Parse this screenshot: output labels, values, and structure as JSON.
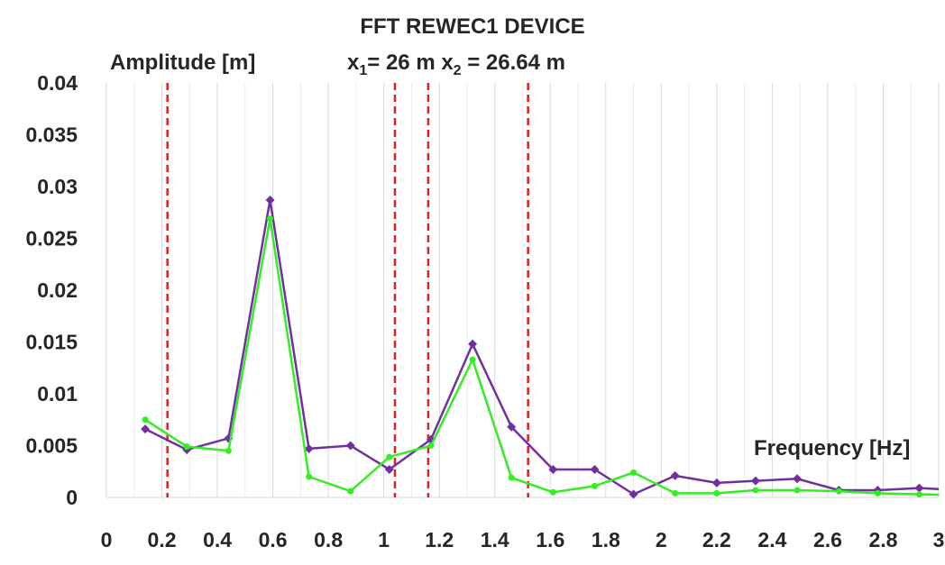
{
  "chart_data": {
    "type": "line",
    "title": "FFT REWEC1 DEVICE",
    "subtitle": {
      "a": "x",
      "a_sub": "1",
      "b": "= 26 m x",
      "b_sub": "2",
      "c": " = 26.64 m"
    },
    "ylabel": "Amplitude [m]",
    "xlabel": "Frequency [Hz]",
    "xlim": [
      0,
      3
    ],
    "ylim": [
      0,
      0.04
    ],
    "x_ticks": [
      "0",
      "0.2",
      "0.4",
      "0.6",
      "0.8",
      "1",
      "1.2",
      "1.4",
      "1.6",
      "1.8",
      "2",
      "2.2",
      "2.4",
      "2.6",
      "2.8",
      "3"
    ],
    "y_ticks": [
      "0",
      "0.005",
      "0.01",
      "0.015",
      "0.02",
      "0.025",
      "0.03",
      "0.035",
      "0.04"
    ],
    "grid": "vertical",
    "vlines": [
      0.22,
      1.04,
      1.16,
      1.52
    ],
    "series": [
      {
        "color": "#7030A0",
        "marker": "diamond",
        "x": [
          0.14,
          0.29,
          0.44,
          0.59,
          0.73,
          0.88,
          1.02,
          1.17,
          1.32,
          1.46,
          1.61,
          1.76,
          1.9,
          2.05,
          2.2,
          2.34,
          2.49,
          2.64,
          2.78,
          2.93,
          3.08
        ],
        "y": [
          0.0066,
          0.0046,
          0.0057,
          0.0287,
          0.0047,
          0.005,
          0.0027,
          0.0056,
          0.0148,
          0.0068,
          0.0027,
          0.0027,
          0.0003,
          0.0021,
          0.0014,
          0.0016,
          0.0018,
          0.0007,
          0.0007,
          0.0009,
          0.0007
        ]
      },
      {
        "color": "#33EE22",
        "marker": "circle",
        "x": [
          0.14,
          0.29,
          0.44,
          0.59,
          0.73,
          0.88,
          1.02,
          1.17,
          1.32,
          1.46,
          1.61,
          1.76,
          1.9,
          2.05,
          2.2,
          2.34,
          2.49,
          2.64,
          2.78,
          2.93,
          3.08
        ],
        "y": [
          0.0075,
          0.0049,
          0.0045,
          0.0269,
          0.002,
          0.0006,
          0.0039,
          0.005,
          0.0133,
          0.0019,
          0.0005,
          0.0011,
          0.0024,
          0.0004,
          0.0004,
          0.0007,
          0.0007,
          0.0006,
          0.0004,
          0.0003,
          0.0002
        ]
      }
    ]
  }
}
